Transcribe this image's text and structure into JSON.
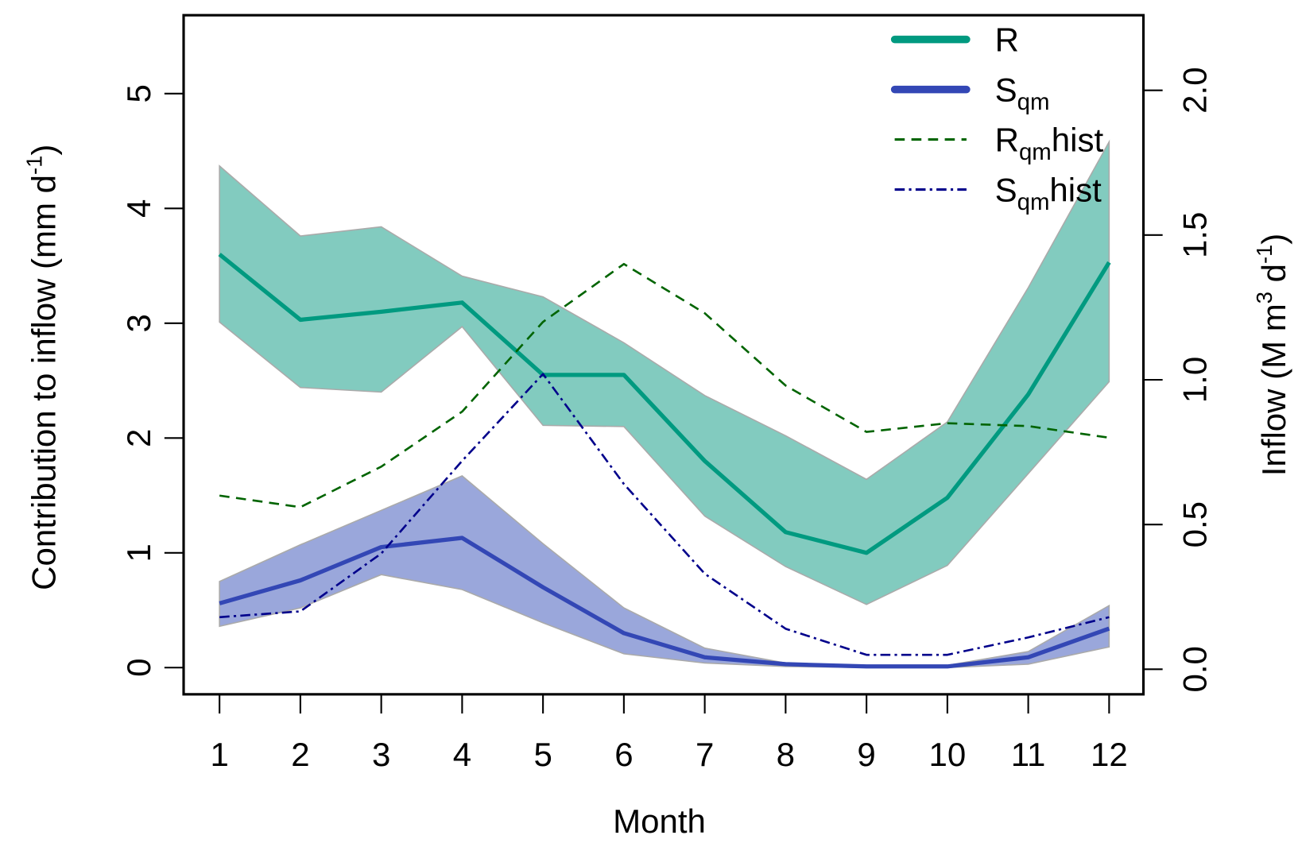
{
  "chart_data": {
    "type": "line",
    "xlabel": "Month",
    "ylabel_left": "Contribution to inflow (mm d",
    "ylabel_left_sup": "-1",
    "ylabel_left_close": ")",
    "ylabel_right": "Inflow (M m",
    "ylabel_right_sup1": "3",
    "ylabel_right_mid": " d",
    "ylabel_right_sup2": "-1",
    "ylabel_right_close": ")",
    "x": [
      1,
      2,
      3,
      4,
      5,
      6,
      7,
      8,
      9,
      10,
      11,
      12
    ],
    "x_ticks": [
      "1",
      "2",
      "3",
      "4",
      "5",
      "6",
      "7",
      "8",
      "9",
      "10",
      "11",
      "12"
    ],
    "ylim_left": [
      0,
      5.6
    ],
    "y_ticks_left": [
      "0",
      "1",
      "2",
      "3",
      "4",
      "5"
    ],
    "ylim_right": [
      0,
      2.2
    ],
    "y_ticks_right": [
      "0.0",
      "0.5",
      "1.0",
      "1.5",
      "2.0"
    ],
    "legend_position": "top-right",
    "series": [
      {
        "name": "R",
        "legend_main": "R",
        "legend_sub": "",
        "legend_suffix": "",
        "axis": "left",
        "color": "#009a80",
        "band_color": "#82cbbf",
        "values": [
          3.6,
          3.03,
          3.1,
          3.18,
          2.55,
          2.55,
          1.8,
          1.18,
          1.0,
          1.48,
          2.38,
          3.53
        ],
        "upper": [
          4.37,
          3.76,
          3.84,
          3.41,
          3.23,
          2.83,
          2.37,
          2.02,
          1.64,
          2.14,
          3.31,
          4.58
        ],
        "lower": [
          3.01,
          2.44,
          2.4,
          2.97,
          2.11,
          2.1,
          1.32,
          0.88,
          0.55,
          0.89,
          1.69,
          2.49
        ]
      },
      {
        "name": "Sqm",
        "legend_main": "S",
        "legend_sub": "qm",
        "legend_suffix": "",
        "axis": "left",
        "color": "#3347b5",
        "band_color": "#9aa7db",
        "values": [
          0.56,
          0.76,
          1.05,
          1.13,
          0.7,
          0.3,
          0.09,
          0.03,
          0.01,
          0.01,
          0.09,
          0.34
        ],
        "upper": [
          0.75,
          1.07,
          1.37,
          1.67,
          1.08,
          0.52,
          0.17,
          0.04,
          0.02,
          0.02,
          0.14,
          0.54
        ],
        "lower": [
          0.36,
          0.52,
          0.81,
          0.68,
          0.39,
          0.12,
          0.04,
          0.01,
          0.0,
          0.0,
          0.03,
          0.18
        ]
      },
      {
        "name": "Rqmhist",
        "legend_main": "R",
        "legend_sub": "qm",
        "legend_suffix": "hist",
        "axis": "right",
        "color": "#006400",
        "dash": "12,8",
        "values": [
          0.6,
          0.56,
          0.7,
          0.89,
          1.2,
          1.4,
          1.23,
          0.98,
          0.82,
          0.85,
          0.84,
          0.8
        ]
      },
      {
        "name": "Sqmhist",
        "legend_main": "S",
        "legend_sub": "qm",
        "legend_suffix": "hist",
        "axis": "right",
        "color": "#00008b",
        "dash": "12,5,3,5",
        "values": [
          0.18,
          0.2,
          0.4,
          0.72,
          1.02,
          0.64,
          0.33,
          0.14,
          0.05,
          0.05,
          0.11,
          0.18
        ]
      }
    ]
  }
}
